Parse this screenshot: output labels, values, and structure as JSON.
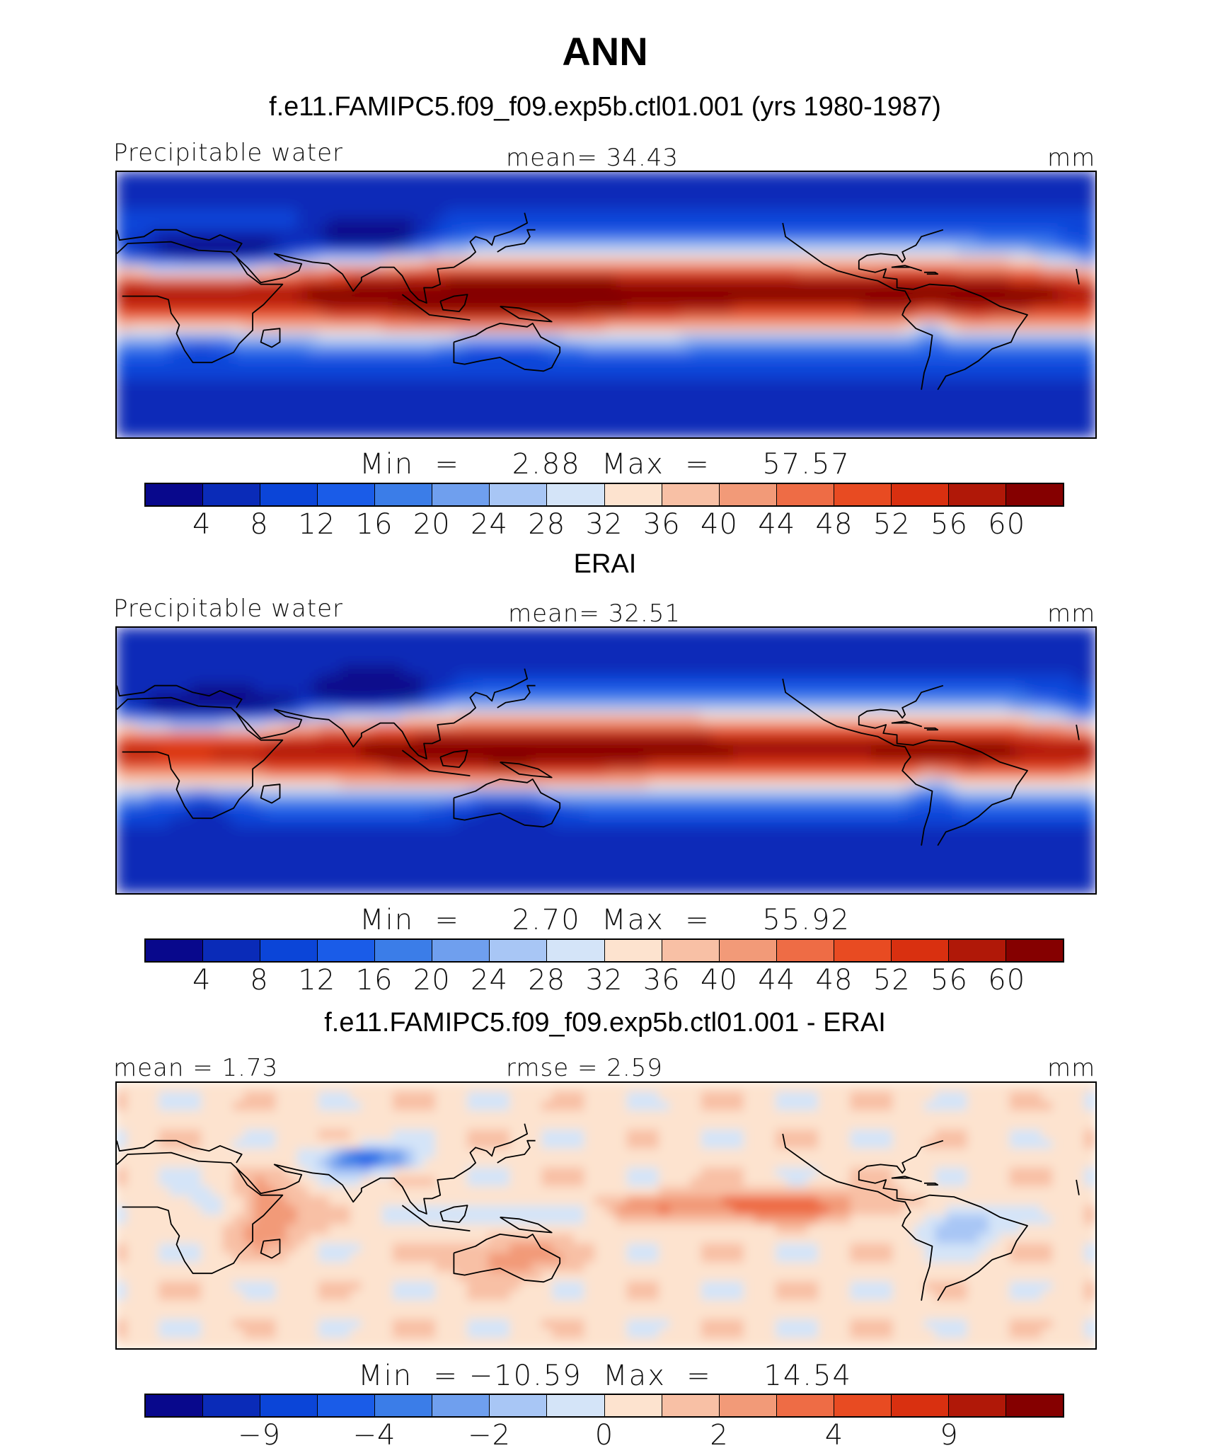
{
  "title": "ANN",
  "colors": [
    "#08088c",
    "#0a2bb8",
    "#0b45d8",
    "#1a5ce8",
    "#3b7de8",
    "#6f9fee",
    "#a8c6f5",
    "#d4e4f8",
    "#fde3cf",
    "#f8c0a5",
    "#f29a78",
    "#ee6c45",
    "#e84b22",
    "#d93010",
    "#b01808",
    "#850000"
  ],
  "panels": [
    {
      "title": "f.e11.FAMIPC5.f09_f09.exp5b.ctl01.001 (yrs 1980-1987)",
      "left_label": "Precipitable water",
      "center_label": "mean=   34.43",
      "right_label": "mm",
      "minmax": "Min  =     2.88  Max  =     57.57",
      "ticks": [
        "4",
        "8",
        "12",
        "16",
        "20",
        "24",
        "28",
        "32",
        "36",
        "40",
        "44",
        "48",
        "52",
        "56",
        "60"
      ],
      "field": "model"
    },
    {
      "title": "ERAI",
      "left_label": "Precipitable water",
      "center_label": "mean=   32.51",
      "right_label": "mm",
      "minmax": "Min  =     2.70  Max  =     55.92",
      "ticks": [
        "4",
        "8",
        "12",
        "16",
        "20",
        "24",
        "28",
        "32",
        "36",
        "40",
        "44",
        "48",
        "52",
        "56",
        "60"
      ],
      "field": "obs"
    },
    {
      "title": "f.e11.FAMIPC5.f09_f09.exp5b.ctl01.001 - ERAI",
      "left_label": "mean  =     1.73",
      "center_label": "rmse  =     2.59",
      "right_label": "mm",
      "minmax": "Min  = −10.59  Max  =     14.54",
      "ticks": [
        "−9",
        "−4",
        "−2",
        "0",
        "2",
        "4",
        "9"
      ],
      "field": "diff"
    }
  ]
}
